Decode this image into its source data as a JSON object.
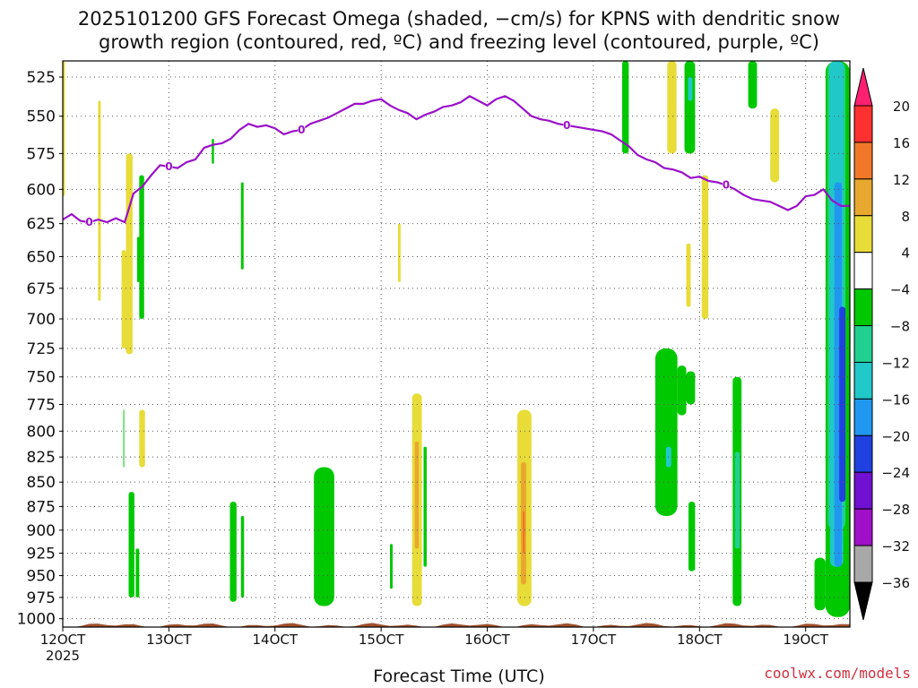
{
  "title_line1": "2025101200 GFS Forecast Omega (shaded, −cm/s) for KPNS with dendritic snow",
  "title_line2": "growth region (contoured, red, ºC) and freezing level (contoured, purple, ºC)",
  "credit": "coolwx.com/models",
  "chart_data": {
    "type": "heatmap",
    "title": "2025101200 GFS Forecast Omega (shaded, −cm/s) for KPNS with dendritic snow growth region (contoured, red, ºC) and freezing level (contoured, purple, ºC)",
    "xlabel": "Forecast Time (UTC)",
    "ylabel": "",
    "x_axis": {
      "range_hours": [
        0,
        178
      ],
      "ticks": [
        {
          "h": 0,
          "label": "12OCT",
          "sub": "2025"
        },
        {
          "h": 24,
          "label": "13OCT",
          "sub": ""
        },
        {
          "h": 48,
          "label": "14OCT",
          "sub": ""
        },
        {
          "h": 72,
          "label": "15OCT",
          "sub": ""
        },
        {
          "h": 96,
          "label": "16OCT",
          "sub": ""
        },
        {
          "h": 120,
          "label": "17OCT",
          "sub": ""
        },
        {
          "h": 144,
          "label": "18OCT",
          "sub": ""
        },
        {
          "h": 168,
          "label": "19OCT",
          "sub": ""
        }
      ]
    },
    "y_axis": {
      "scale": "log-pressure",
      "range": [
        1010,
        515
      ],
      "ticks": [
        525,
        550,
        575,
        600,
        625,
        650,
        675,
        700,
        725,
        750,
        775,
        800,
        825,
        850,
        875,
        900,
        925,
        950,
        975,
        1000
      ]
    },
    "grid": true,
    "colorbar": {
      "levels": [
        "20",
        "16",
        "12",
        "8",
        "4",
        "−4",
        "−8",
        "−12",
        "−16",
        "−20",
        "−24",
        "−28",
        "−32",
        "−36"
      ],
      "colors": [
        "#ff2070",
        "#ff3030",
        "#f07828",
        "#e8a830",
        "#e8dc38",
        "#ffffff",
        "#00c800",
        "#20d090",
        "#20c8c8",
        "#2098f0",
        "#2040e0",
        "#7010d0",
        "#a010c8",
        "#a8a8a8",
        "#000000"
      ]
    },
    "omega_cells": [
      {
        "t": [
          -0.5,
          0.5
        ],
        "p": [
          515,
          605
        ],
        "c": "#e8dc38"
      },
      {
        "t": [
          8,
          8.6
        ],
        "p": [
          540,
          685
        ],
        "c": "#e8dc38"
      },
      {
        "t": [
          13.3,
          14.3
        ],
        "p": [
          645,
          725
        ],
        "c": "#e8dc38"
      },
      {
        "t": [
          14.3,
          15.8
        ],
        "p": [
          575,
          730
        ],
        "c": "#e8dc38"
      },
      {
        "t": [
          17.3,
          18.4
        ],
        "p": [
          590,
          700
        ],
        "c": "#00c800"
      },
      {
        "t": [
          16.8,
          17.4
        ],
        "p": [
          635,
          670
        ],
        "c": "#00c800"
      },
      {
        "t": [
          33.7,
          34.2
        ],
        "p": [
          565,
          582
        ],
        "c": "#00c800"
      },
      {
        "t": [
          40.3,
          40.9
        ],
        "p": [
          595,
          660
        ],
        "c": "#00c800"
      },
      {
        "t": [
          75.8,
          76.4
        ],
        "p": [
          625,
          670
        ],
        "c": "#e8dc38"
      },
      {
        "t": [
          17.3,
          18.6
        ],
        "p": [
          780,
          835
        ],
        "c": "#e8dc38"
      },
      {
        "t": [
          13.7,
          13.9
        ],
        "p": [
          780,
          835
        ],
        "c": "#00c800"
      },
      {
        "t": [
          14.9,
          16.2
        ],
        "p": [
          860,
          975
        ],
        "c": "#00c800"
      },
      {
        "t": [
          16.5,
          17.3
        ],
        "p": [
          920,
          975
        ],
        "c": "#00c800"
      },
      {
        "t": [
          37.8,
          39.3
        ],
        "p": [
          870,
          980
        ],
        "c": "#00c800"
      },
      {
        "t": [
          40.3,
          41
        ],
        "p": [
          885,
          975
        ],
        "c": "#00c800"
      },
      {
        "t": [
          56.8,
          61.4
        ],
        "p": [
          835,
          985
        ],
        "c": "#00c800"
      },
      {
        "t": [
          74,
          74.6
        ],
        "p": [
          915,
          965
        ],
        "c": "#00c800"
      },
      {
        "t": [
          79,
          81.2
        ],
        "p": [
          765,
          985
        ],
        "c": "#e8dc38"
      },
      {
        "t": [
          79.6,
          80.5
        ],
        "p": [
          810,
          920
        ],
        "c": "#e8a830"
      },
      {
        "t": [
          81.6,
          82.3
        ],
        "p": [
          815,
          940
        ],
        "c": "#00c800"
      },
      {
        "t": [
          102.8,
          106
        ],
        "p": [
          780,
          985
        ],
        "c": "#e8dc38"
      },
      {
        "t": [
          103.6,
          104.8
        ],
        "p": [
          830,
          960
        ],
        "c": "#e8a830"
      },
      {
        "t": [
          104,
          104.5
        ],
        "p": [
          880,
          925
        ],
        "c": "#f07828"
      },
      {
        "t": [
          126.5,
          128
        ],
        "p": [
          515,
          575
        ],
        "c": "#00c800"
      },
      {
        "t": [
          136.7,
          138.8
        ],
        "p": [
          515,
          575
        ],
        "c": "#e8dc38"
      },
      {
        "t": [
          140.6,
          143
        ],
        "p": [
          515,
          575
        ],
        "c": "#00c800"
      },
      {
        "t": [
          141.4,
          142.4
        ],
        "p": [
          525,
          540
        ],
        "c": "#20c8c8"
      },
      {
        "t": [
          141,
          142
        ],
        "p": [
          640,
          690
        ],
        "c": "#e8dc38"
      },
      {
        "t": [
          134,
          139
        ],
        "p": [
          725,
          885
        ],
        "c": "#00c800"
      },
      {
        "t": [
          139,
          141
        ],
        "p": [
          740,
          785
        ],
        "c": "#00c800"
      },
      {
        "t": [
          141,
          143
        ],
        "p": [
          745,
          775
        ],
        "c": "#00c800"
      },
      {
        "t": [
          136.4,
          137.6
        ],
        "p": [
          815,
          835
        ],
        "c": "#20c8c8"
      },
      {
        "t": [
          141.5,
          143
        ],
        "p": [
          870,
          945
        ],
        "c": "#00c800"
      },
      {
        "t": [
          144.5,
          146
        ],
        "p": [
          590,
          700
        ],
        "c": "#e8dc38"
      },
      {
        "t": [
          151.5,
          153.5
        ],
        "p": [
          750,
          985
        ],
        "c": "#00c800"
      },
      {
        "t": [
          152,
          153.1
        ],
        "p": [
          820,
          920
        ],
        "c": "#20d090"
      },
      {
        "t": [
          155,
          157
        ],
        "p": [
          515,
          545
        ],
        "c": "#00c800"
      },
      {
        "t": [
          160,
          162
        ],
        "p": [
          545,
          595
        ],
        "c": "#e8dc38"
      },
      {
        "t": [
          170,
          172.5
        ],
        "p": [
          930,
          990
        ],
        "c": "#00c800"
      },
      {
        "t": [
          172.5,
          178
        ],
        "p": [
          515,
          998
        ],
        "c": "#00c800"
      },
      {
        "t": [
          173,
          177
        ],
        "p": [
          515,
          900
        ],
        "c": "#20d090"
      },
      {
        "t": [
          173.5,
          176.5
        ],
        "p": [
          515,
          620
        ],
        "c": "#20c8c8"
      },
      {
        "t": [
          173.5,
          176.5
        ],
        "p": [
          590,
          940
        ],
        "c": "#20c8c8"
      },
      {
        "t": [
          174.5,
          176.2
        ],
        "p": [
          595,
          940
        ],
        "c": "#2098f0"
      },
      {
        "t": [
          175.6,
          177
        ],
        "p": [
          690,
          870
        ],
        "c": "#2040e0"
      },
      {
        "t": [
          178,
          180.5
        ],
        "p": [
          650,
          760
        ],
        "c": "#00c800"
      }
    ],
    "freezing_level": {
      "label": "0",
      "t": [
        0,
        2,
        4,
        6,
        8,
        10,
        12,
        14,
        16,
        18,
        20,
        22,
        24,
        26,
        28,
        30,
        32,
        34,
        36,
        38,
        40,
        42,
        44,
        46,
        48,
        50,
        52,
        54,
        56,
        58,
        60,
        62,
        64,
        66,
        68,
        70,
        72,
        74,
        76,
        78,
        80,
        82,
        84,
        86,
        88,
        90,
        92,
        94,
        96,
        98,
        100,
        102,
        104,
        106,
        108,
        110,
        112,
        114,
        116,
        118,
        120,
        122,
        124,
        126,
        128,
        130,
        132,
        134,
        136,
        138,
        140,
        142,
        144,
        146,
        148,
        150,
        152,
        154,
        156,
        158,
        160,
        162,
        164,
        166,
        168,
        170,
        172,
        174,
        176,
        178
      ],
      "p": [
        622,
        618,
        623,
        624,
        622,
        624,
        621,
        624,
        603,
        598,
        590,
        583,
        584,
        585,
        581,
        579,
        571,
        569,
        568,
        565,
        559,
        555,
        557,
        556,
        558,
        562,
        560,
        559,
        555,
        553,
        551,
        548,
        545,
        542,
        542,
        540,
        539,
        543,
        546,
        548,
        552,
        549,
        547,
        544,
        543,
        541,
        537,
        540,
        543,
        539,
        537,
        540,
        545,
        550,
        552,
        553,
        555,
        556,
        557,
        558,
        559,
        560,
        562,
        566,
        570,
        576,
        579,
        581,
        585,
        586,
        588,
        592,
        591,
        594,
        595,
        597,
        600,
        604,
        607,
        608,
        609,
        612,
        615,
        612,
        605,
        604,
        600,
        608,
        612,
        612
      ]
    },
    "surface_terrain": {
      "p": 1010,
      "color": "#a0522d"
    }
  }
}
